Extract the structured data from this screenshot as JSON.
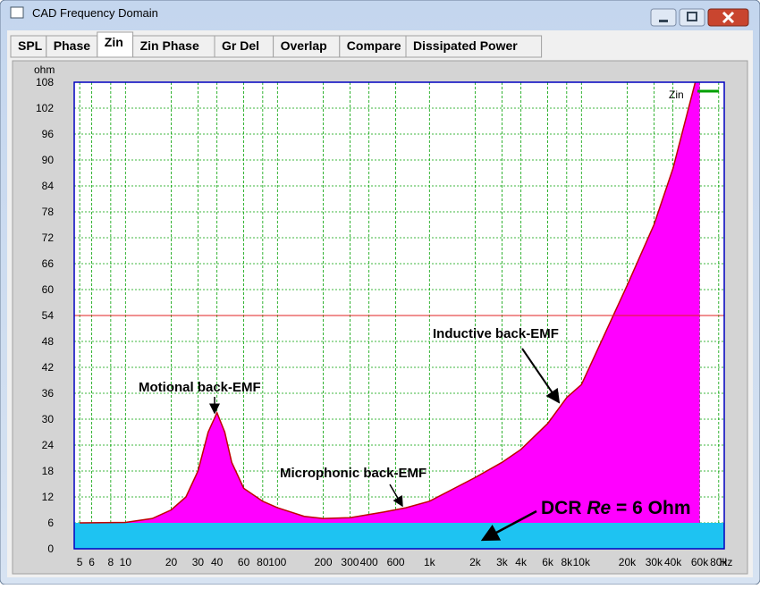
{
  "window": {
    "title": "CAD Frequency Domain"
  },
  "tabs": [
    "SPL",
    "Phase",
    "Zin",
    "Zin Phase",
    "Gr Del",
    "Overlap",
    "Compare",
    "Dissipated Power"
  ],
  "selected_tab": "Zin",
  "chart_data": {
    "type": "area",
    "y_label": "ohm",
    "x_label": "Hz",
    "log_x": true,
    "grid": true,
    "legend": "upper right",
    "xlim": [
      4.6,
      87000
    ],
    "ylim": [
      0,
      108
    ],
    "xticks": [
      5,
      6,
      8,
      10,
      20,
      30,
      40,
      60,
      80,
      100,
      200,
      300,
      400,
      600,
      {
        "value": 1000,
        "label": "1k"
      },
      {
        "value": 2000,
        "label": "2k"
      },
      {
        "value": 3000,
        "label": "3k"
      },
      {
        "value": 4000,
        "label": "4k"
      },
      {
        "value": 6000,
        "label": "6k"
      },
      {
        "value": 8000,
        "label": "8k"
      },
      {
        "value": 10000,
        "label": "10k"
      },
      {
        "value": 20000,
        "label": "20k"
      },
      {
        "value": 30000,
        "label": "30k"
      },
      {
        "value": 40000,
        "label": "40k"
      },
      {
        "value": 60000,
        "label": "60k"
      },
      {
        "value": 80000,
        "label": "80k"
      }
    ],
    "yticks": [
      0,
      6,
      12,
      18,
      24,
      30,
      36,
      42,
      48,
      54,
      60,
      66,
      72,
      78,
      84,
      90,
      96,
      102,
      108
    ],
    "x": [
      5,
      10,
      15,
      20,
      25,
      30,
      35,
      40,
      45,
      50,
      60,
      80,
      100,
      150,
      200,
      300,
      500,
      700,
      1000,
      2000,
      3000,
      4000,
      6000,
      8000,
      10000,
      20000,
      30000,
      40000,
      60000
    ],
    "series": [
      {
        "name": "Zin",
        "color": "#ff00ff",
        "line_color": "#c00000",
        "legend_color": "#00a000",
        "values": [
          6,
          6.1,
          7,
          9,
          12,
          18,
          27,
          31.5,
          27,
          20,
          14,
          11,
          9.5,
          7.5,
          7,
          7.2,
          8.5,
          9.5,
          11,
          16.5,
          20,
          23,
          29,
          35,
          38,
          61,
          75,
          88,
          112
        ]
      }
    ],
    "reference_line": {
      "value": 54,
      "color": "#e02020"
    },
    "dcr_band": {
      "value": 6,
      "color": "#1ec3f2"
    },
    "annotations": [
      {
        "text": "Motional back-EMF"
      },
      {
        "text": "Microphonic back-EMF"
      },
      {
        "text": "Inductive back-EMF"
      },
      {
        "text": [
          "DCR",
          "Re",
          "= 6 Ohm"
        ]
      }
    ]
  }
}
